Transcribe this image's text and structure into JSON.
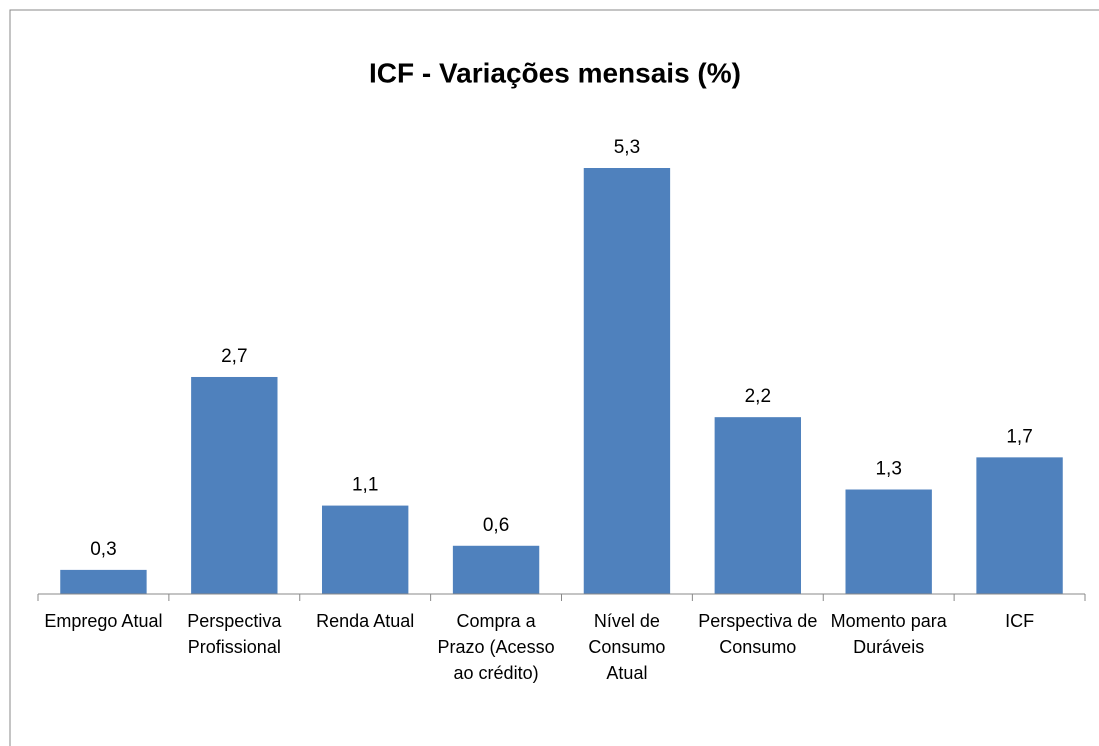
{
  "chart_data": {
    "type": "bar",
    "title": "ICF - Variações mensais (%)",
    "categories": [
      "Emprego Atual",
      "Perspectiva Profissional",
      "Renda Atual",
      "Compra a Prazo (Acesso ao crédito)",
      "Nível de Consumo Atual",
      "Perspectiva de Consumo",
      "Momento para Duráveis",
      "ICF"
    ],
    "values": [
      0.3,
      2.7,
      1.1,
      0.6,
      5.3,
      2.2,
      1.3,
      1.7
    ],
    "value_labels": [
      "0,3",
      "2,7",
      "1,1",
      "0,6",
      "5,3",
      "2,2",
      "1,3",
      "1,7"
    ],
    "color": "#4f81bd"
  }
}
